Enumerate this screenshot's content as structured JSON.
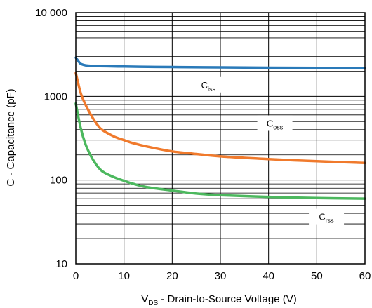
{
  "chart_data": {
    "type": "line",
    "xlabel": {
      "main": "V",
      "sub": "DS",
      "rest": " - Drain-to-Source Voltage (V)"
    },
    "ylabel": "C - Capacitance (pF)",
    "xlim": [
      0,
      60
    ],
    "ylim": [
      10,
      10000
    ],
    "yscale": "log",
    "grid": true,
    "x_ticks": [
      0,
      10,
      20,
      30,
      40,
      50,
      60
    ],
    "x_tick_labels": [
      "0",
      "10",
      "20",
      "30",
      "40",
      "50",
      "60"
    ],
    "y_ticks": [
      10,
      100,
      1000,
      10000
    ],
    "y_tick_labels": [
      "10",
      "100",
      "1000",
      "10 000"
    ],
    "series": [
      {
        "name": "Ciss",
        "label_main": "C",
        "label_sub": "iss",
        "color": "#2a7ab9",
        "x": [
          0,
          0.5,
          1,
          2,
          3,
          5,
          8,
          10,
          15,
          20,
          30,
          40,
          50,
          60
        ],
        "y": [
          2900,
          2650,
          2450,
          2350,
          2320,
          2300,
          2280,
          2270,
          2250,
          2240,
          2220,
          2200,
          2190,
          2180
        ]
      },
      {
        "name": "Coss",
        "label_main": "C",
        "label_sub": "oss",
        "color": "#f07a2c",
        "x": [
          0,
          1,
          2,
          3,
          4,
          5,
          6,
          8,
          10,
          12,
          15,
          20,
          25,
          30,
          40,
          50,
          60
        ],
        "y": [
          1900,
          1100,
          800,
          620,
          500,
          420,
          380,
          330,
          300,
          275,
          250,
          220,
          205,
          192,
          178,
          168,
          160
        ]
      },
      {
        "name": "Crss",
        "label_main": "C",
        "label_sub": "rss",
        "color": "#4cb85e",
        "x": [
          0,
          1,
          2,
          3,
          4,
          5,
          6,
          8,
          10,
          12,
          15,
          20,
          25,
          30,
          40,
          50,
          60
        ],
        "y": [
          820,
          420,
          270,
          200,
          160,
          135,
          122,
          108,
          98,
          90,
          82,
          75,
          69,
          66,
          63,
          61,
          60
        ]
      }
    ]
  }
}
